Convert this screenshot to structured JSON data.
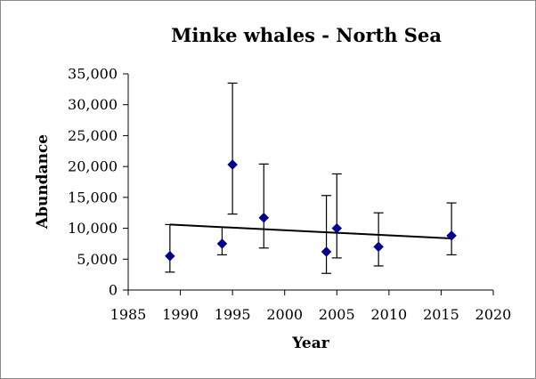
{
  "chart_data": {
    "type": "scatter",
    "title": "Minke whales - North Sea",
    "xlabel": "Year",
    "ylabel": "Abundance",
    "xlim": [
      1985,
      2020
    ],
    "ylim": [
      0,
      35000
    ],
    "x_ticks": [
      1985,
      1990,
      1995,
      2000,
      2005,
      2010,
      2015,
      2020
    ],
    "y_ticks": [
      0,
      5000,
      10000,
      15000,
      20000,
      25000,
      30000,
      35000
    ],
    "y_tick_labels": [
      "0",
      "5,000",
      "10,000",
      "15,000",
      "20,000",
      "25,000",
      "30,000",
      "35,000"
    ],
    "grid": false,
    "legend": "none",
    "series": [
      {
        "marker": "diamond",
        "color": "#00008b",
        "points": [
          {
            "x": 1989,
            "y": 5500,
            "low": 2900,
            "high": 10600
          },
          {
            "x": 1994,
            "y": 7500,
            "low": 5700,
            "high": 10200
          },
          {
            "x": 1995,
            "y": 20300,
            "low": 12300,
            "high": 33500
          },
          {
            "x": 1998,
            "y": 11700,
            "low": 6800,
            "high": 20400
          },
          {
            "x": 2004,
            "y": 6200,
            "low": 2700,
            "high": 15300
          },
          {
            "x": 2005,
            "y": 10000,
            "low": 5200,
            "high": 18800
          },
          {
            "x": 2009,
            "y": 7000,
            "low": 3900,
            "high": 12500
          },
          {
            "x": 2016,
            "y": 8800,
            "low": 5700,
            "high": 14100
          }
        ]
      }
    ],
    "trendline": {
      "type": "linear",
      "color": "#000000",
      "x_start": 1989,
      "y_start": 10600,
      "x_end": 2016,
      "y_end": 8350
    }
  }
}
